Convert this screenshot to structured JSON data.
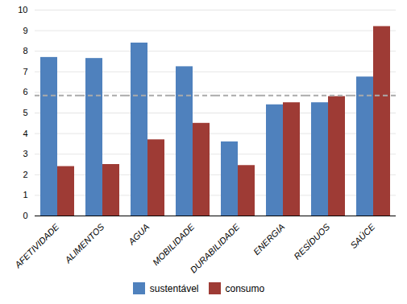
{
  "chart_data": {
    "type": "bar",
    "categories": [
      "AFETIVIDADE",
      "ALIMENTOS",
      "AGUA",
      "MOBILIDADE",
      "DURABILIDADE",
      "ENERGIA",
      "RESÍDUOS",
      "SAÚCE"
    ],
    "series": [
      {
        "name": "sustentável",
        "color": "#4F81BD",
        "values": [
          7.7,
          7.65,
          8.4,
          7.25,
          3.6,
          5.4,
          5.5,
          6.75
        ]
      },
      {
        "name": "consumo",
        "color": "#9E3B35",
        "values": [
          2.4,
          2.5,
          3.7,
          4.5,
          2.45,
          5.5,
          5.8,
          9.2
        ]
      }
    ],
    "reference_line": {
      "value": 5.85,
      "color": "#AAAAAA",
      "line_style": "dashed"
    },
    "ylim": [
      0,
      10
    ],
    "yticks": [
      0,
      1,
      2,
      3,
      4,
      5,
      6,
      7,
      8,
      9,
      10
    ],
    "grid": true,
    "legend": "bottom"
  }
}
